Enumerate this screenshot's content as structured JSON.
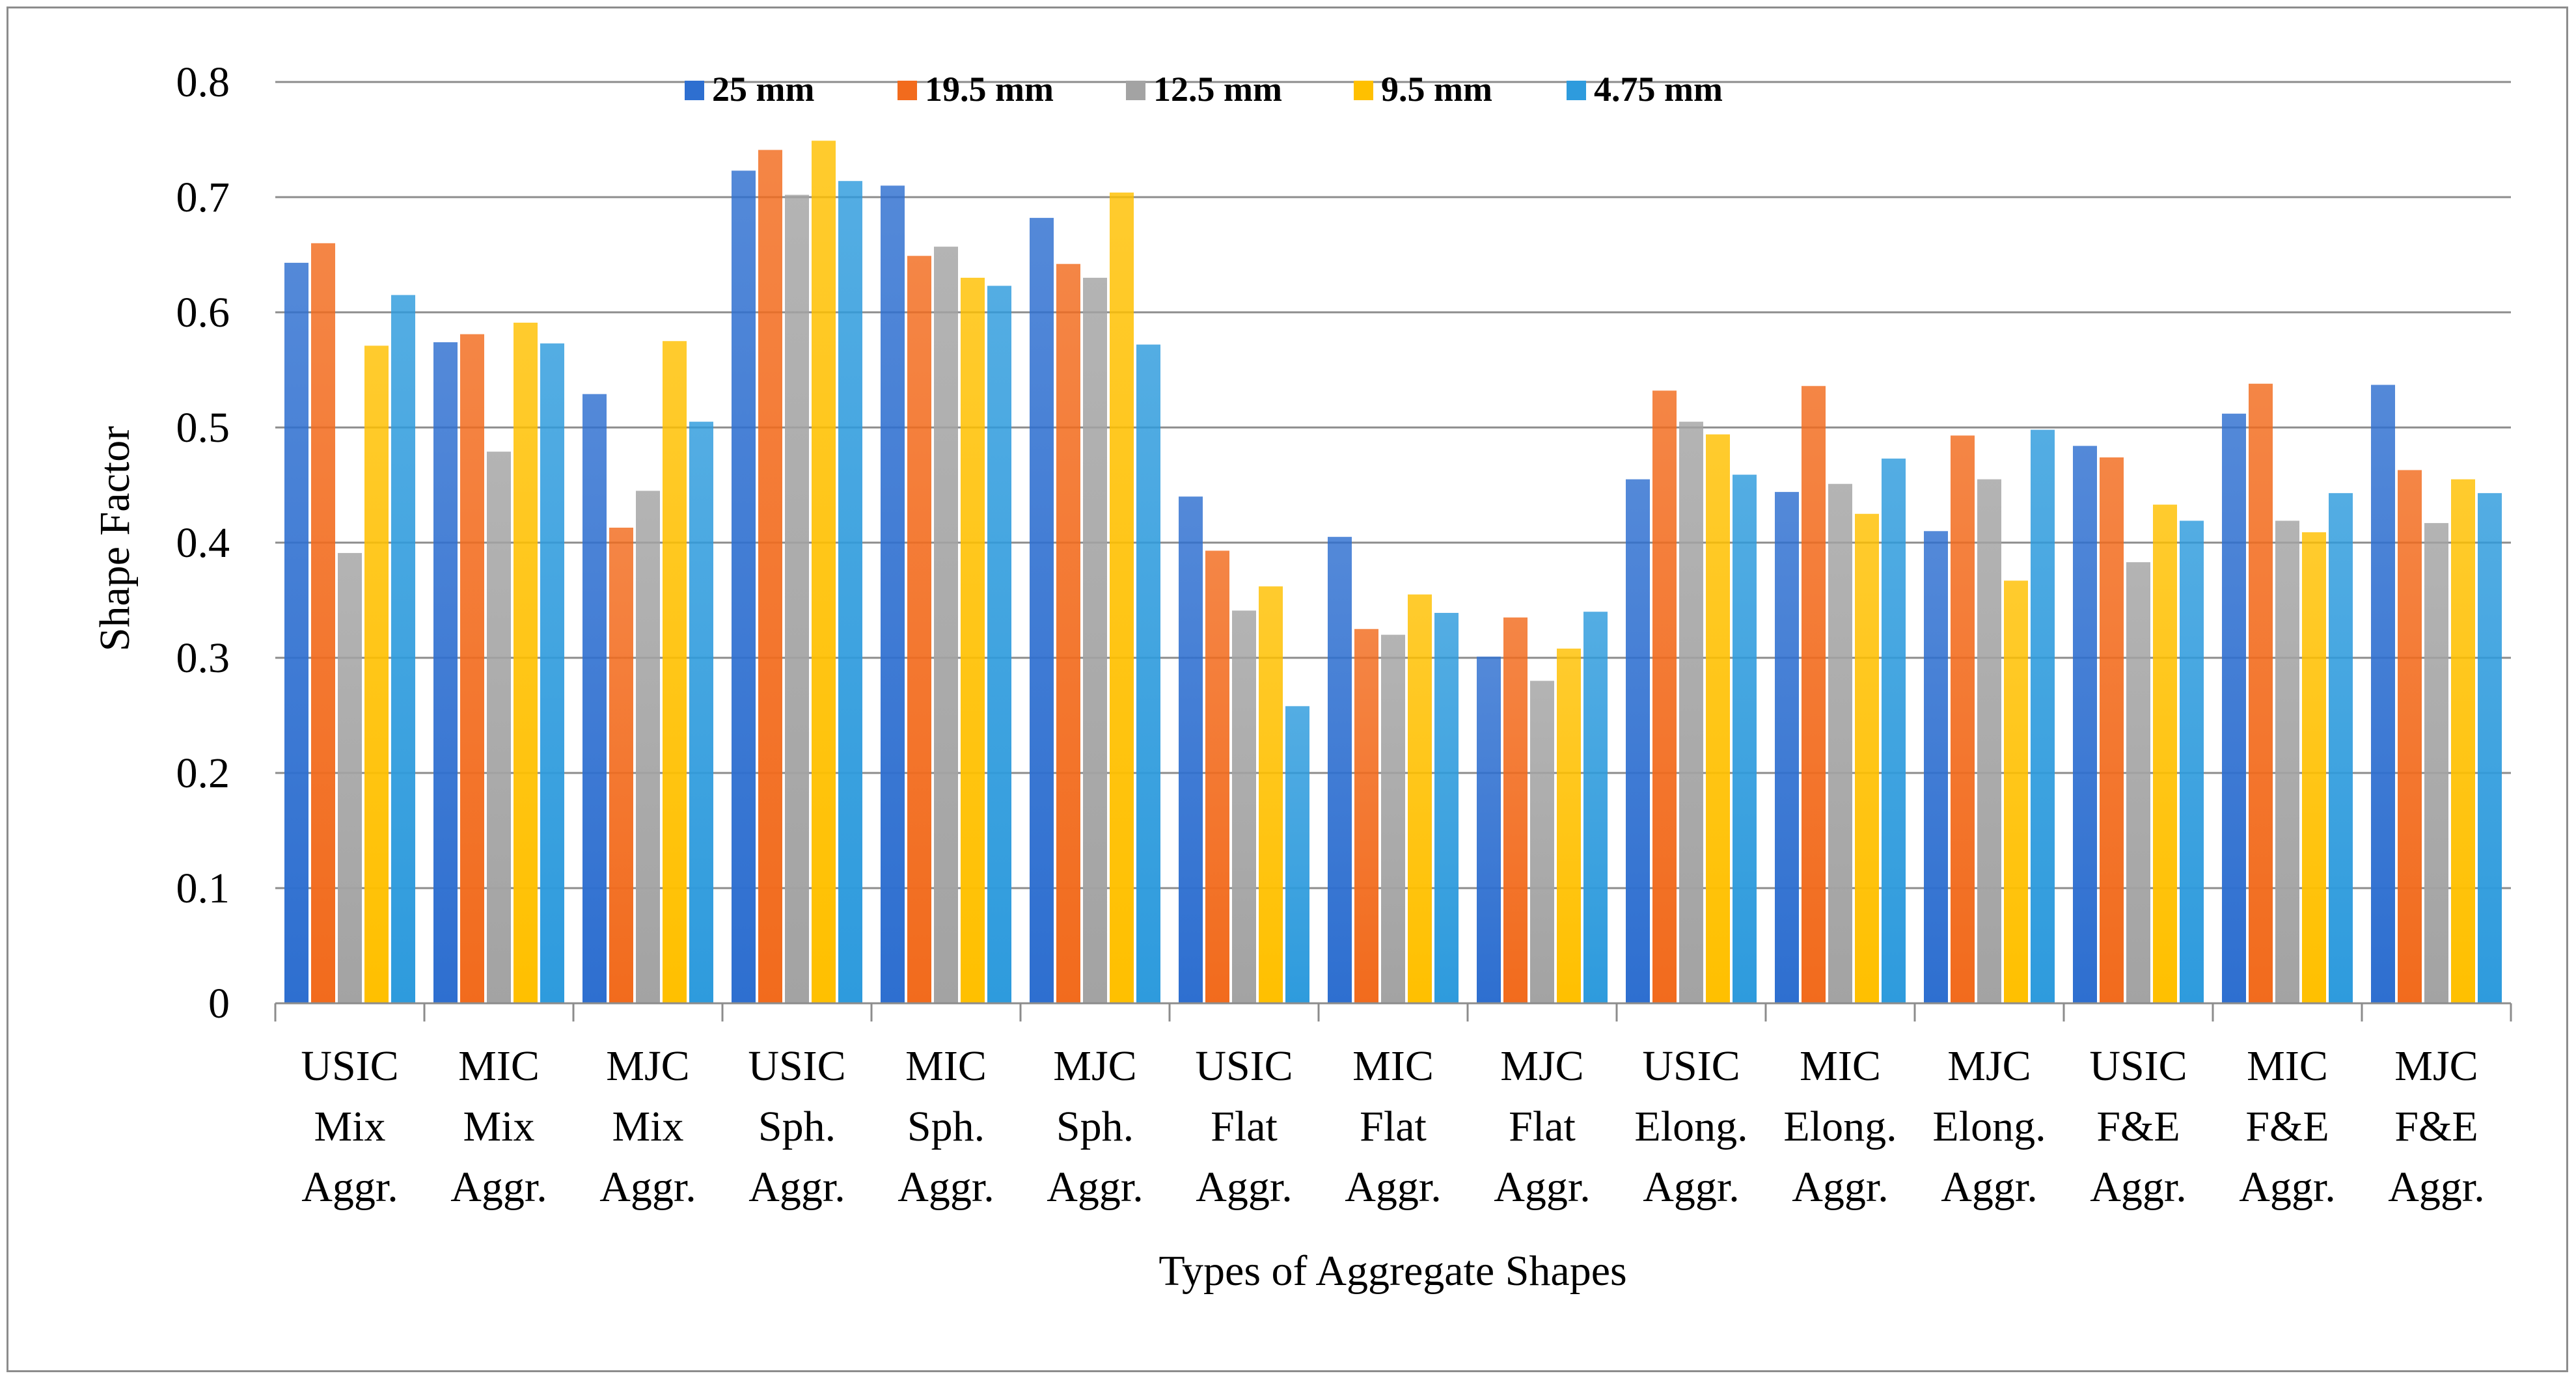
{
  "chart_data": {
    "type": "bar",
    "title": "",
    "xlabel": "Types of Aggregate Shapes",
    "ylabel": "Shape Factor",
    "ylim": [
      0,
      0.8
    ],
    "yticks": [
      "0",
      "0.1",
      "0.2",
      "0.3",
      "0.4",
      "0.5",
      "0.6",
      "0.7",
      "0.8"
    ],
    "grid": true,
    "legend_position": "top",
    "categories": [
      [
        "USIC",
        "Mix",
        "Aggr."
      ],
      [
        "MIC",
        "Mix",
        "Aggr."
      ],
      [
        "MJC",
        "Mix",
        "Aggr."
      ],
      [
        "USIC",
        "Sph.",
        "Aggr."
      ],
      [
        "MIC",
        "Sph.",
        "Aggr."
      ],
      [
        "MJC",
        "Sph.",
        "Aggr."
      ],
      [
        "USIC",
        "Flat",
        "Aggr."
      ],
      [
        "MIC",
        "Flat",
        "Aggr."
      ],
      [
        "MJC",
        "Flat",
        "Aggr."
      ],
      [
        "USIC",
        "Elong.",
        "Aggr."
      ],
      [
        "MIC",
        "Elong.",
        "Aggr."
      ],
      [
        "MJC",
        "Elong.",
        "Aggr."
      ],
      [
        "USIC",
        "F&E",
        "Aggr."
      ],
      [
        "MIC",
        "F&E",
        "Aggr."
      ],
      [
        "MJC",
        "F&E",
        "Aggr."
      ]
    ],
    "series": [
      {
        "name": "25 mm",
        "color": "#2e6fd0",
        "values": [
          0.643,
          0.574,
          0.529,
          0.723,
          0.71,
          0.682,
          0.44,
          0.405,
          0.301,
          0.455,
          0.444,
          0.41,
          0.484,
          0.512,
          0.537
        ]
      },
      {
        "name": "19.5 mm",
        "color": "#f26b1d",
        "values": [
          0.66,
          0.581,
          0.413,
          0.741,
          0.649,
          0.642,
          0.393,
          0.325,
          0.335,
          0.532,
          0.536,
          0.493,
          0.474,
          0.538,
          0.463
        ]
      },
      {
        "name": "12.5 mm",
        "color": "#a3a3a3",
        "values": [
          0.391,
          0.479,
          0.445,
          0.702,
          0.657,
          0.63,
          0.341,
          0.32,
          0.28,
          0.505,
          0.451,
          0.455,
          0.383,
          0.419,
          0.417
        ]
      },
      {
        "name": "9.5 mm",
        "color": "#ffc000",
        "values": [
          0.571,
          0.591,
          0.575,
          0.749,
          0.63,
          0.704,
          0.362,
          0.355,
          0.308,
          0.494,
          0.425,
          0.367,
          0.433,
          0.409,
          0.455
        ]
      },
      {
        "name": "4.75 mm",
        "color": "#2e9bdd",
        "values": [
          0.615,
          0.573,
          0.505,
          0.714,
          0.623,
          0.572,
          0.258,
          0.339,
          0.34,
          0.459,
          0.473,
          0.498,
          0.419,
          0.443,
          0.443
        ]
      }
    ]
  }
}
